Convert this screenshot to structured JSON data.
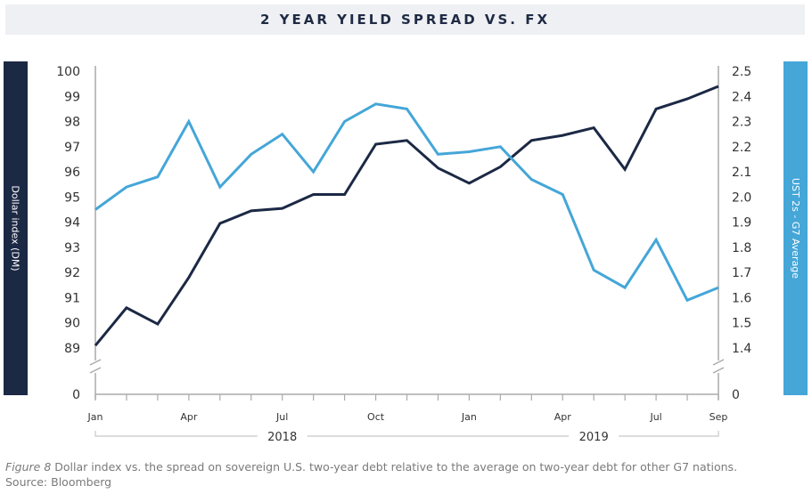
{
  "chart_data": {
    "type": "line",
    "title": "2 YEAR YIELD SPREAD VS. FX",
    "ylabel_left": "Dollar index (DM)",
    "ylabel_right": "UST 2s - G7 Average",
    "x": [
      "2018-01",
      "2018-02",
      "2018-03",
      "2018-04",
      "2018-05",
      "2018-06",
      "2018-07",
      "2018-08",
      "2018-09",
      "2018-10",
      "2018-11",
      "2018-12",
      "2019-01",
      "2019-02",
      "2019-03",
      "2019-04",
      "2019-05",
      "2019-06",
      "2019-07",
      "2019-08",
      "2019-09"
    ],
    "x_tick_labels": [
      "Jan",
      "Apr",
      "Jul",
      "Oct",
      "Jan",
      "Apr",
      "Jul",
      "Sep"
    ],
    "x_tick_positions": [
      "2018-01",
      "2018-04",
      "2018-07",
      "2018-10",
      "2019-01",
      "2019-04",
      "2019-07",
      "2019-09"
    ],
    "year_labels": [
      "2018",
      "2019"
    ],
    "y_left_ticks": [
      "100",
      "99",
      "98",
      "97",
      "96",
      "95",
      "94",
      "93",
      "92",
      "91",
      "90",
      "89",
      "0"
    ],
    "y_right_ticks": [
      "2.5",
      "2.4",
      "2.3",
      "2.2",
      "2.1",
      "2.0",
      "1.9",
      "1.8",
      "1.7",
      "1.6",
      "1.5",
      "1.4",
      "0"
    ],
    "y_left_range": [
      89,
      100
    ],
    "y_right_range": [
      1.4,
      2.5
    ],
    "axis_break": true,
    "grid": false,
    "series": [
      {
        "axis": "left",
        "color": "#1c2945",
        "values": [
          89.1,
          90.6,
          89.95,
          91.8,
          93.95,
          94.45,
          94.55,
          95.1,
          95.1,
          97.1,
          97.25,
          96.15,
          95.55,
          96.2,
          97.25,
          97.45,
          97.75,
          96.1,
          98.5,
          98.9,
          99.4
        ]
      },
      {
        "axis": "right",
        "color": "#45a6d8",
        "values": [
          1.95,
          2.04,
          2.08,
          2.3,
          2.04,
          2.17,
          2.25,
          2.1,
          2.3,
          2.37,
          2.35,
          2.17,
          2.18,
          2.2,
          2.07,
          2.01,
          1.71,
          1.64,
          1.83,
          1.59,
          1.64
        ]
      }
    ]
  },
  "caption": {
    "figure": "Figure 8",
    "text": " Dollar index vs. the spread on sovereign U.S. two-year debt relative to the average on two-year debt for other G7 nations.",
    "source": "Source: Bloomberg"
  }
}
